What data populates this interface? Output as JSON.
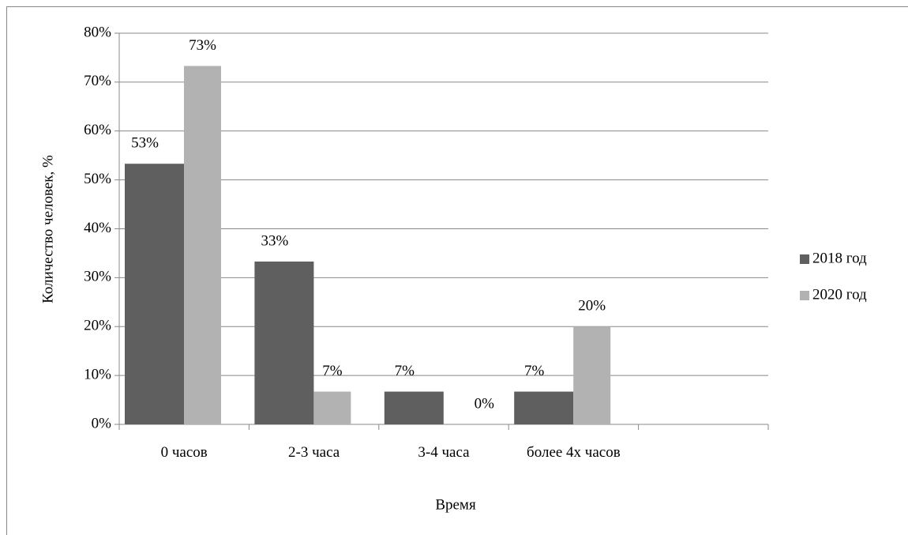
{
  "chart_data": {
    "type": "bar",
    "x_label": "Время",
    "y_label": "Количество человек, %",
    "categories": [
      "0 часов",
      "2-3 часа",
      "3-4 часа",
      "более 4х часов",
      null
    ],
    "series": [
      {
        "name": "2018 год",
        "color": "#5f5f5f",
        "values": [
          53.3,
          33.3,
          6.7,
          6.7,
          null
        ],
        "value_labels": [
          "53%",
          "33%",
          "7%",
          "7%",
          null
        ]
      },
      {
        "name": "2020 год",
        "color": "#b2b2b2",
        "values": [
          73.3,
          6.7,
          0,
          20,
          null
        ],
        "value_labels": [
          "73%",
          "7%",
          "0%",
          "20%",
          null
        ]
      }
    ],
    "ylim": [
      0,
      80
    ],
    "yticks": [
      {
        "value": 0,
        "label": "0%"
      },
      {
        "value": 10,
        "label": "10%"
      },
      {
        "value": 20,
        "label": "20%"
      },
      {
        "value": 30,
        "label": "30%"
      },
      {
        "value": 40,
        "label": "40%"
      },
      {
        "value": 50,
        "label": "50%"
      },
      {
        "value": 60,
        "label": "60%"
      },
      {
        "value": 70,
        "label": "70%"
      },
      {
        "value": 80,
        "label": "80%"
      }
    ],
    "grid": true,
    "legend": "right"
  }
}
